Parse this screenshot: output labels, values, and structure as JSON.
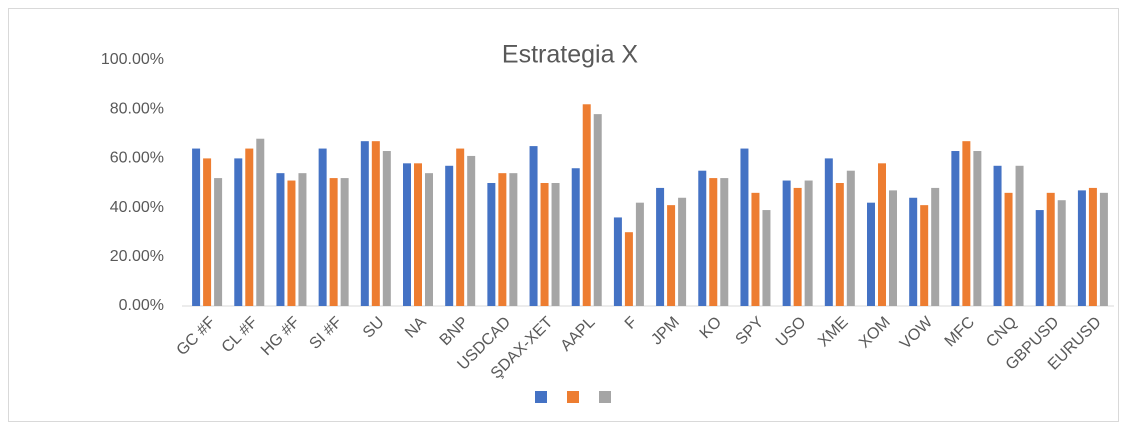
{
  "chart_data": {
    "type": "bar",
    "title": "Estrategia X",
    "categories": [
      "GC #F",
      "CL #F",
      "HG #F",
      "SI #F",
      "SU",
      "NA",
      "BNP",
      "USDCAD",
      "ŞDAX-XET",
      "AAPL",
      "F",
      "JPM",
      "KO",
      "SPY",
      "USO",
      "XME",
      "XOM",
      "VOW",
      "MFC",
      "CNQ",
      "GBPUSD",
      "EURUSD"
    ],
    "series": [
      {
        "color": "#4472c4",
        "values": [
          64,
          60,
          54,
          64,
          67,
          58,
          57,
          50,
          65,
          56,
          36,
          48,
          55,
          64,
          51,
          60,
          42,
          44,
          63,
          57,
          39,
          47
        ]
      },
      {
        "color": "#ed7d31",
        "values": [
          60,
          64,
          51,
          52,
          67,
          58,
          64,
          54,
          50,
          82,
          30,
          41,
          52,
          46,
          48,
          50,
          58,
          41,
          67,
          46,
          46,
          48
        ]
      },
      {
        "color": "#a5a5a5",
        "values": [
          52,
          68,
          54,
          52,
          63,
          54,
          61,
          54,
          50,
          78,
          42,
          44,
          52,
          39,
          51,
          55,
          47,
          48,
          63,
          57,
          43,
          46
        ]
      }
    ],
    "ylim": [
      0,
      100
    ],
    "yticks": [
      {
        "value": 0,
        "label": "0.00%"
      },
      {
        "value": 20,
        "label": "20.00%"
      },
      {
        "value": 40,
        "label": "40.00%"
      },
      {
        "value": 60,
        "label": "60.00%"
      },
      {
        "value": 80,
        "label": "80.00%"
      },
      {
        "value": 100,
        "label": "100.00%"
      }
    ],
    "grid": false,
    "legend": "bottom"
  }
}
